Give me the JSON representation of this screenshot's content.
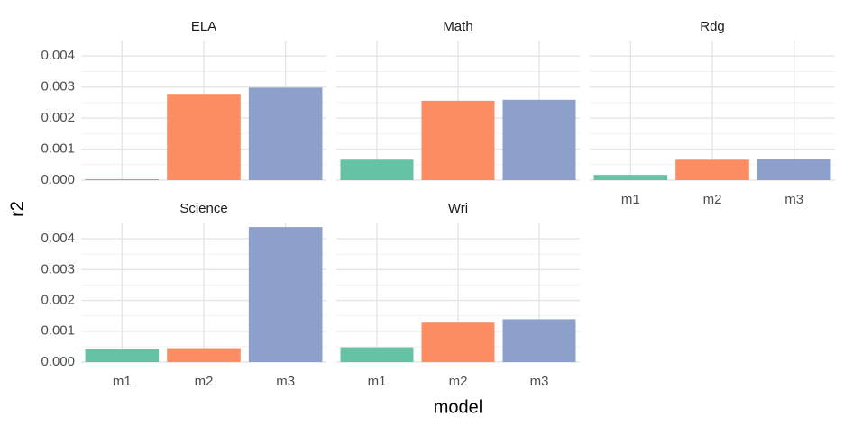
{
  "chart_data": {
    "type": "bar",
    "xlabel": "model",
    "ylabel": "r2",
    "ylim": [
      0,
      0.0045
    ],
    "yticks": [
      0.0,
      0.001,
      0.002,
      0.003,
      0.004
    ],
    "ytick_labels": [
      "0.000",
      "0.001",
      "0.002",
      "0.003",
      "0.004"
    ],
    "categories": [
      "m1",
      "m2",
      "m3"
    ],
    "colors": {
      "m1": "#66c2a5",
      "m2": "#fc8d62",
      "m3": "#8da0cb"
    },
    "grid": true,
    "legend": "none",
    "facets": [
      {
        "title": "ELA",
        "values": [
          3e-05,
          0.00278,
          0.00298
        ]
      },
      {
        "title": "Math",
        "values": [
          0.00066,
          0.00256,
          0.00259
        ]
      },
      {
        "title": "Rdg",
        "values": [
          0.00017,
          0.00066,
          0.00069
        ]
      },
      {
        "title": "Science",
        "values": [
          0.00042,
          0.00045,
          0.00438
        ]
      },
      {
        "title": "Wri",
        "values": [
          0.00048,
          0.00128,
          0.00139
        ]
      }
    ]
  }
}
